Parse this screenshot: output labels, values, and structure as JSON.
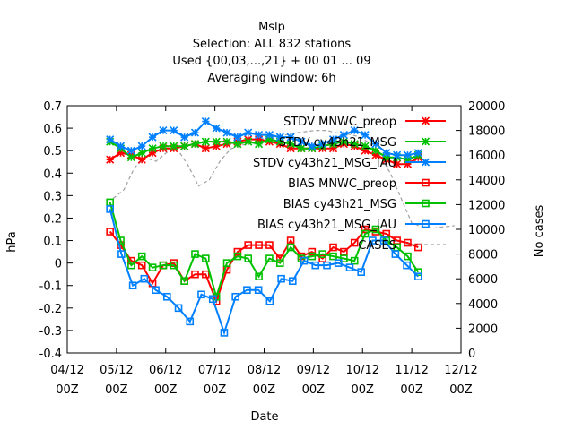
{
  "chart_data": {
    "type": "line",
    "title": [
      "Mslp",
      "Selection: ALL    832 stations",
      "Used {00,03,...,21} + 00 01 ... 09",
      "Averaging window:  6h"
    ],
    "xlabel": "Date",
    "ylabel": "hPa",
    "y2label": "No cases",
    "ylim": [
      -0.4,
      0.7
    ],
    "y2lim": [
      0,
      20000
    ],
    "xlim": [
      0,
      8
    ],
    "x_ticks": [
      {
        "line1": "04/12",
        "line2": "00Z"
      },
      {
        "line1": "05/12",
        "line2": "00Z"
      },
      {
        "line1": "06/12",
        "line2": "00Z"
      },
      {
        "line1": "07/12",
        "line2": "00Z"
      },
      {
        "line1": "08/12",
        "line2": "00Z"
      },
      {
        "line1": "09/12",
        "line2": "00Z"
      },
      {
        "line1": "10/12",
        "line2": "00Z"
      },
      {
        "line1": "11/12",
        "line2": "00Z"
      },
      {
        "line1": "12/12",
        "line2": "00Z"
      }
    ],
    "y_ticks": [
      "-0.4",
      "-0.3",
      "-0.2",
      "-0.1",
      "0",
      "0.1",
      "0.2",
      "0.3",
      "0.4",
      "0.5",
      "0.6",
      "0.7"
    ],
    "y2_ticks": [
      "0",
      "2000",
      "4000",
      "6000",
      "8000",
      "10000",
      "12000",
      "14000",
      "16000",
      "18000",
      "20000"
    ],
    "grid": false,
    "legend_position": "top-right",
    "series": [
      {
        "name": "STDV MNWC_preop",
        "color": "#ff0000",
        "marker": "star",
        "axis": "left",
        "values": [
          0.46,
          0.49,
          0.48,
          0.46,
          0.49,
          0.51,
          0.51,
          0.52,
          0.53,
          0.51,
          0.52,
          0.53,
          0.54,
          0.55,
          0.55,
          0.54,
          0.53,
          0.51,
          0.51,
          0.51,
          0.51,
          0.51,
          0.53,
          0.52,
          0.5,
          0.48,
          0.46,
          0.44,
          0.44,
          0.47
        ]
      },
      {
        "name": "STDV cy43h21_MSG",
        "color": "#00c000",
        "marker": "star",
        "axis": "left",
        "values": [
          0.54,
          0.51,
          0.47,
          0.49,
          0.51,
          0.52,
          0.52,
          0.52,
          0.53,
          0.54,
          0.54,
          0.54,
          0.53,
          0.54,
          0.53,
          0.55,
          0.54,
          0.53,
          0.51,
          0.51,
          0.52,
          0.53,
          0.54,
          0.53,
          0.52,
          0.5,
          0.47,
          0.47,
          0.46,
          0.48
        ]
      },
      {
        "name": "STDV cy43h21_MSG_IAU",
        "color": "#0080ff",
        "marker": "star",
        "axis": "left",
        "values": [
          0.55,
          0.52,
          0.5,
          0.52,
          0.56,
          0.59,
          0.59,
          0.56,
          0.58,
          0.63,
          0.6,
          0.58,
          0.56,
          0.58,
          0.57,
          0.57,
          0.56,
          0.56,
          0.54,
          0.52,
          0.53,
          0.55,
          0.57,
          0.59,
          0.57,
          0.53,
          0.49,
          0.48,
          0.48,
          0.49
        ]
      },
      {
        "name": "BIAS MNWC_preop",
        "color": "#ff0000",
        "marker": "square",
        "axis": "left",
        "values": [
          0.14,
          0.08,
          0.01,
          -0.01,
          -0.09,
          -0.01,
          0.0,
          -0.08,
          -0.05,
          -0.05,
          -0.17,
          -0.03,
          0.05,
          0.08,
          0.08,
          0.08,
          0.02,
          0.1,
          0.03,
          0.05,
          0.02,
          0.07,
          0.05,
          0.09,
          0.15,
          0.14,
          0.13,
          0.1,
          0.09,
          0.07
        ]
      },
      {
        "name": "BIAS cy43h21_MSG",
        "color": "#00c000",
        "marker": "square",
        "axis": "left",
        "values": [
          0.27,
          0.1,
          -0.01,
          0.03,
          -0.02,
          -0.01,
          -0.01,
          -0.08,
          0.04,
          0.02,
          -0.15,
          0.0,
          0.03,
          0.02,
          -0.06,
          0.02,
          0.0,
          0.07,
          0.02,
          0.03,
          0.04,
          0.03,
          0.02,
          0.01,
          0.13,
          0.15,
          0.1,
          0.07,
          0.03,
          -0.04
        ]
      },
      {
        "name": "BIAS cy43h21_MSG_IAU",
        "color": "#0080ff",
        "marker": "square",
        "axis": "left",
        "values": [
          0.24,
          0.04,
          -0.1,
          -0.07,
          -0.12,
          -0.15,
          -0.2,
          -0.26,
          -0.14,
          -0.16,
          -0.31,
          -0.15,
          -0.12,
          -0.12,
          -0.17,
          -0.07,
          -0.08,
          0.01,
          -0.01,
          -0.01,
          0.0,
          -0.02,
          -0.04,
          0.1,
          0.1,
          0.04,
          -0.01,
          -0.06
        ]
      },
      {
        "name": "CASES",
        "color": "#a0a0a0",
        "marker": "none",
        "dash": "dashed",
        "axis": "right",
        "values": [
          12500,
          13200,
          15000,
          15800,
          15500,
          16200,
          16500,
          15200,
          13500,
          14000,
          15500,
          16500,
          16800,
          17000,
          17300,
          17500,
          17600,
          17800,
          17900,
          18000,
          18000,
          17800,
          17700,
          17500,
          17000,
          16000,
          14500,
          12500,
          10500,
          10200,
          10100,
          10200,
          10300
        ]
      }
    ]
  }
}
